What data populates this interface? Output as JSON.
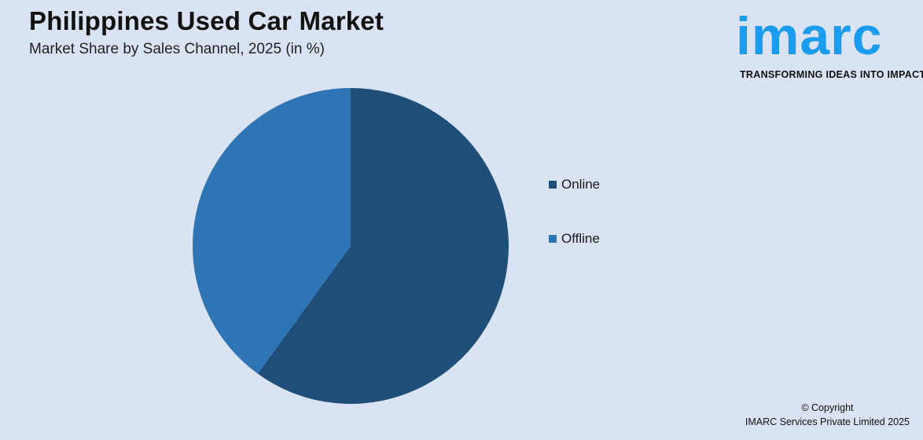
{
  "header": {
    "title": "Philippines Used Car Market",
    "subtitle": "Market Share by Sales Channel, 2025 (in %)"
  },
  "logo": {
    "word": "imarc",
    "tagline": "TRANSFORMING IDEAS INTO IMPACT",
    "color": "#1a9cf0"
  },
  "chart_data": {
    "type": "pie",
    "title": "Philippines Used Car Market",
    "subtitle": "Market Share by Sales Channel, 2025 (in %)",
    "categories": [
      "Online",
      "Offline"
    ],
    "values": [
      60,
      40
    ],
    "colors": [
      "#1f4e79",
      "#2e75b6"
    ],
    "legend_position": "right"
  },
  "footer": {
    "copyright_line1": "© Copyright",
    "copyright_line2": "IMARC Services Private Limited 2025"
  }
}
